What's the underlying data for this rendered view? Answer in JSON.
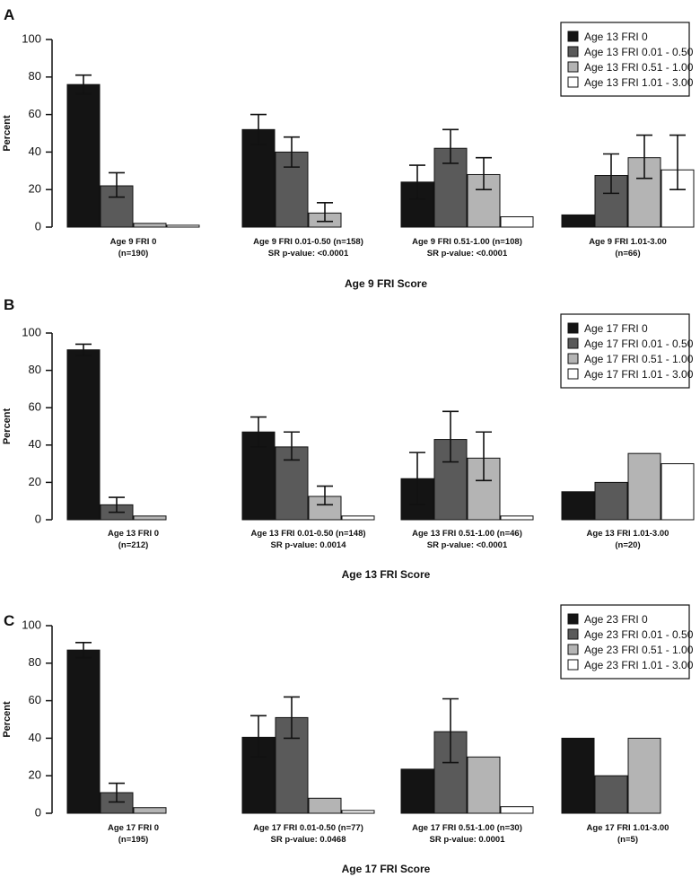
{
  "chart_data": [
    {
      "panel": "A",
      "type": "bar",
      "ylabel": "Percent",
      "xlabel": "Age 9 FRI Score",
      "ylim": [
        0,
        100
      ],
      "yticks": [
        0,
        20,
        40,
        60,
        80,
        100
      ],
      "categories": [
        {
          "label": "Age 9 FRI 0",
          "sub": "(n=190)"
        },
        {
          "label": "Age 9 FRI 0.01-0.50 (n=158)",
          "sub": "SR p-value: <0.0001"
        },
        {
          "label": "Age 9 FRI 0.51-1.00 (n=108)",
          "sub": "SR p-value: <0.0001"
        },
        {
          "label": "Age 9 FRI 1.01-3.00",
          "sub": "(n=66)"
        }
      ],
      "series": [
        {
          "name": "Age 13 FRI 0",
          "color": "#141414",
          "values": [
            76,
            52,
            24,
            6.5
          ],
          "err": [
            [
              71,
              81
            ],
            [
              44,
              60
            ],
            [
              15,
              33
            ],
            null
          ]
        },
        {
          "name": "Age 13 FRI 0.01 - 0.50",
          "color": "#5a5a5a",
          "values": [
            22,
            40,
            42,
            27.5
          ],
          "err": [
            [
              16,
              29
            ],
            [
              32,
              48
            ],
            [
              34,
              52
            ],
            [
              18,
              39
            ]
          ]
        },
        {
          "name": "Age 13 FRI 0.51 - 1.00",
          "color": "#b4b4b4",
          "values": [
            2,
            7.5,
            28,
            37
          ],
          "err": [
            null,
            [
              3,
              13
            ],
            [
              20,
              37
            ],
            [
              26,
              49
            ]
          ]
        },
        {
          "name": "Age 13 FRI 1.01 - 3.00",
          "color": "#ffffff",
          "values": [
            1,
            0,
            5.5,
            30.5
          ],
          "err": [
            null,
            null,
            null,
            [
              20,
              49
            ]
          ]
        }
      ]
    },
    {
      "panel": "B",
      "type": "bar",
      "ylabel": "Percent",
      "xlabel": "Age 13 FRI Score",
      "ylim": [
        0,
        100
      ],
      "yticks": [
        0,
        20,
        40,
        60,
        80,
        100
      ],
      "categories": [
        {
          "label": "Age 13 FRI 0",
          "sub": "(n=212)"
        },
        {
          "label": "Age 13 FRI 0.01-0.50 (n=148)",
          "sub": "SR p-value: 0.0014"
        },
        {
          "label": "Age 13 FRI 0.51-1.00 (n=46)",
          "sub": "SR p-value: <0.0001"
        },
        {
          "label": "Age 13 FRI 1.01-3.00",
          "sub": "(n=20)"
        }
      ],
      "series": [
        {
          "name": "Age 17 FRI 0",
          "color": "#141414",
          "values": [
            91,
            47,
            22,
            15
          ],
          "err": [
            [
              88,
              94
            ],
            [
              39,
              55
            ],
            [
              8,
              36
            ],
            null
          ]
        },
        {
          "name": "Age 17 FRI 0.01 - 0.50",
          "color": "#5a5a5a",
          "values": [
            8,
            39,
            43,
            20
          ],
          "err": [
            [
              4,
              12
            ],
            [
              32,
              47
            ],
            [
              31,
              58
            ],
            null
          ]
        },
        {
          "name": "Age 17 FRI 0.51 - 1.00",
          "color": "#b4b4b4",
          "values": [
            2,
            12.5,
            33,
            35.5
          ],
          "err": [
            null,
            [
              8,
              18
            ],
            [
              21,
              47
            ],
            null
          ]
        },
        {
          "name": "Age 17 FRI 1.01 - 3.00",
          "color": "#ffffff",
          "values": [
            0,
            2,
            2,
            30
          ],
          "err": [
            null,
            null,
            null,
            null
          ]
        }
      ]
    },
    {
      "panel": "C",
      "type": "bar",
      "ylabel": "Percent",
      "xlabel": "Age 17 FRI Score",
      "ylim": [
        0,
        100
      ],
      "yticks": [
        0,
        20,
        40,
        60,
        80,
        100
      ],
      "categories": [
        {
          "label": "Age 17 FRI 0",
          "sub": "(n=195)"
        },
        {
          "label": "Age 17 FRI 0.01-0.50 (n=77)",
          "sub": "SR p-value: 0.0468"
        },
        {
          "label": "Age 17 FRI 0.51-1.00 (n=30)",
          "sub": "SR p-value: 0.0001"
        },
        {
          "label": "Age 17 FRI 1.01-3.00",
          "sub": "(n=5)"
        }
      ],
      "series": [
        {
          "name": "Age 23 FRI 0",
          "color": "#141414",
          "values": [
            87,
            40.5,
            23.5,
            40
          ],
          "err": [
            [
              83,
              91
            ],
            [
              30,
              52
            ],
            null,
            null
          ]
        },
        {
          "name": "Age 23 FRI 0.01 - 0.50",
          "color": "#5a5a5a",
          "values": [
            11,
            51,
            43.5,
            20
          ],
          "err": [
            [
              6,
              16
            ],
            [
              40,
              62
            ],
            [
              27,
              61
            ],
            null
          ]
        },
        {
          "name": "Age 23 FRI 0.51 - 1.00",
          "color": "#b4b4b4",
          "values": [
            3,
            8,
            30,
            40
          ],
          "err": [
            null,
            null,
            null,
            null
          ]
        },
        {
          "name": "Age 23 FRI 1.01 - 3.00",
          "color": "#ffffff",
          "values": [
            0,
            1.5,
            3.5,
            0
          ],
          "err": [
            null,
            null,
            null,
            null
          ]
        }
      ]
    }
  ]
}
